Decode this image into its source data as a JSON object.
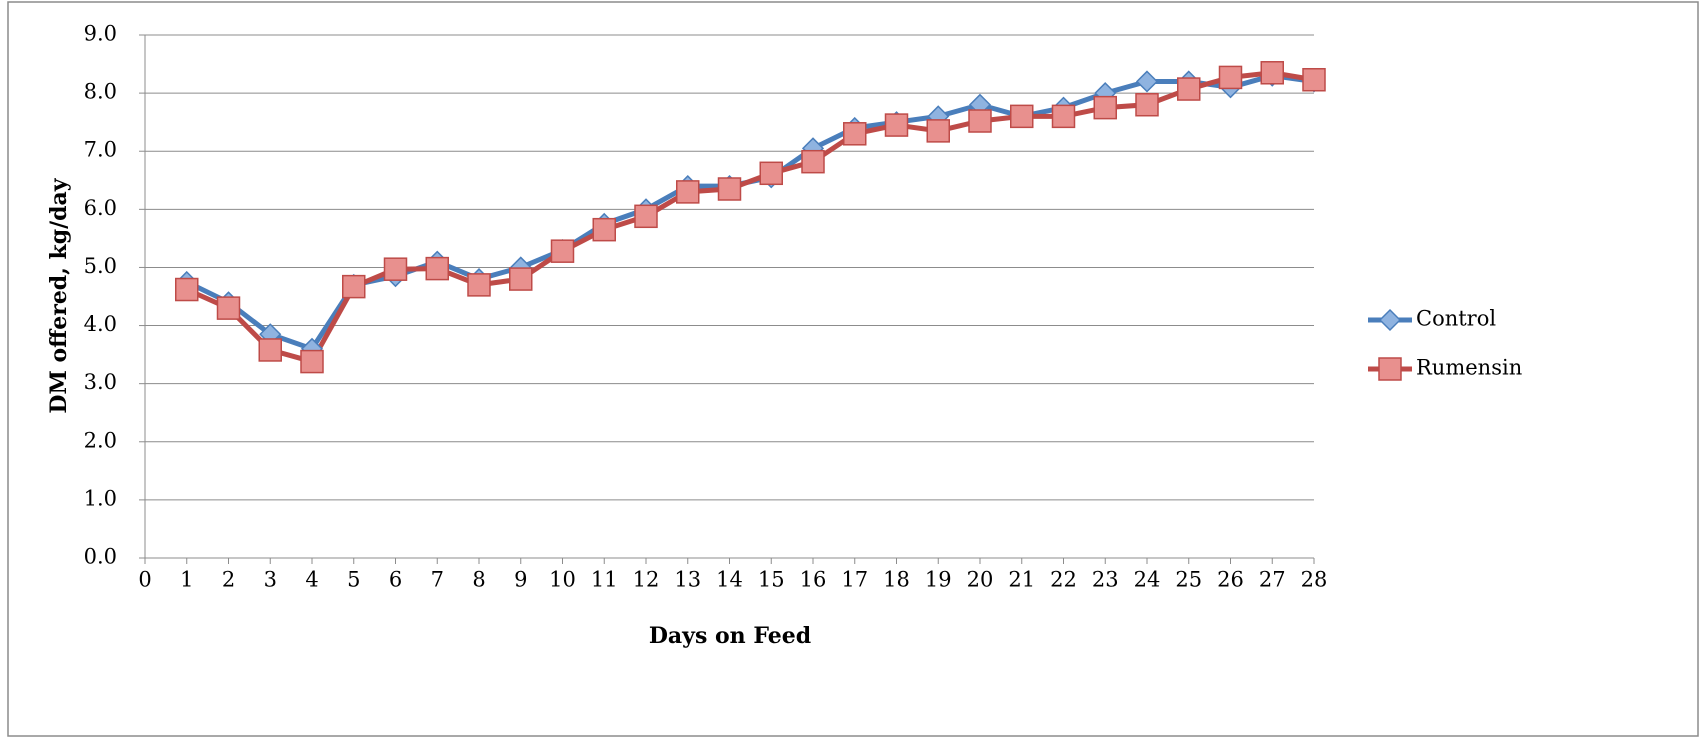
{
  "chart_data": {
    "type": "line",
    "x_label": "Days on Feed",
    "y_label": "DM offered, kg/day",
    "x": [
      1,
      2,
      3,
      4,
      5,
      6,
      7,
      8,
      9,
      10,
      11,
      12,
      13,
      14,
      15,
      16,
      17,
      18,
      19,
      20,
      21,
      22,
      23,
      24,
      25,
      26,
      27,
      28
    ],
    "series": [
      {
        "name": "Control",
        "color": "#4a7ebb",
        "marker": "diamond",
        "values": [
          4.75,
          4.4,
          3.85,
          3.6,
          4.7,
          4.85,
          5.1,
          4.8,
          5.0,
          5.3,
          5.75,
          6.0,
          6.4,
          6.4,
          6.55,
          7.05,
          7.4,
          7.5,
          7.6,
          7.8,
          7.6,
          7.75,
          8.0,
          8.2,
          8.2,
          8.1,
          8.3,
          8.2
        ]
      },
      {
        "name": "Rumensin",
        "color": "#be4b48",
        "marker": "square",
        "values": [
          4.62,
          4.3,
          3.58,
          3.38,
          4.67,
          4.97,
          4.98,
          4.7,
          4.8,
          5.28,
          5.65,
          5.88,
          6.3,
          6.35,
          6.62,
          6.82,
          7.3,
          7.45,
          7.35,
          7.52,
          7.6,
          7.6,
          7.75,
          7.8,
          8.07,
          8.27,
          8.35,
          8.23
        ]
      }
    ],
    "xlim": [
      0,
      28
    ],
    "xticks": [
      0,
      1,
      2,
      3,
      4,
      5,
      6,
      7,
      8,
      9,
      10,
      11,
      12,
      13,
      14,
      15,
      16,
      17,
      18,
      19,
      20,
      21,
      22,
      23,
      24,
      25,
      26,
      27,
      28
    ],
    "ylim": [
      0,
      9
    ],
    "yticks": [
      {
        "value": 0,
        "label": "0.0"
      },
      {
        "value": 1,
        "label": "1.0"
      },
      {
        "value": 2,
        "label": "2.0"
      },
      {
        "value": 3,
        "label": "3.0"
      },
      {
        "value": 4,
        "label": "4.0"
      },
      {
        "value": 5,
        "label": "5.0"
      },
      {
        "value": 6,
        "label": "6.0"
      },
      {
        "value": 7,
        "label": "7.0"
      },
      {
        "value": 8,
        "label": "8.0"
      },
      {
        "value": 9,
        "label": "9.0"
      }
    ],
    "grid": true,
    "legend": "right"
  }
}
